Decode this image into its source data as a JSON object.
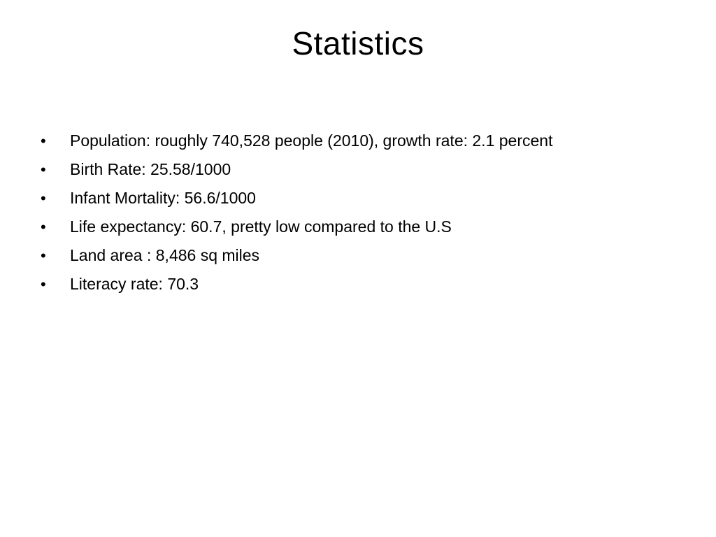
{
  "slide": {
    "title": "Statistics",
    "bullet_glyph": "•",
    "bullets": [
      "Population: roughly 740,528 people (2010), growth rate: 2.1 percent",
      "Birth Rate: 25.58/1000",
      "Infant Mortality: 56.6/1000",
      "Life expectancy: 60.7, pretty low compared to the U.S",
      "Land area : 8,486 sq miles",
      "Literacy rate: 70.3"
    ]
  }
}
